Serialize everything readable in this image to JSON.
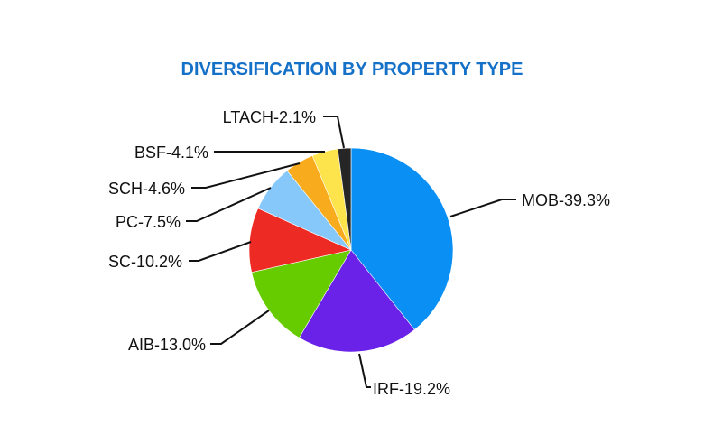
{
  "chart_data": {
    "type": "pie",
    "title": "DIVERSIFICATION BY PROPERTY TYPE",
    "start": "top, clockwise",
    "slices": [
      {
        "label": "MOB-39.3%",
        "category": "MOB",
        "value": 39.3,
        "color": "#0a8ff5"
      },
      {
        "label": "IRF-19.2%",
        "category": "IRF",
        "value": 19.2,
        "color": "#6a22e8"
      },
      {
        "label": "AIB-13.0%",
        "category": "AIB",
        "value": 13.0,
        "color": "#66cc00"
      },
      {
        "label": "SC-10.2%",
        "category": "SC",
        "value": 10.2,
        "color": "#ee2a24"
      },
      {
        "label": "PC-7.5%",
        "category": "PC",
        "value": 7.5,
        "color": "#87c8fb"
      },
      {
        "label": "SCH-4.6%",
        "category": "SCH",
        "value": 4.6,
        "color": "#f8ab1c"
      },
      {
        "label": "BSF-4.1%",
        "category": "BSF",
        "value": 4.1,
        "color": "#fde44c"
      },
      {
        "label": "LTACH-2.1%",
        "category": "LTACH",
        "value": 2.1,
        "color": "#262626"
      }
    ]
  }
}
